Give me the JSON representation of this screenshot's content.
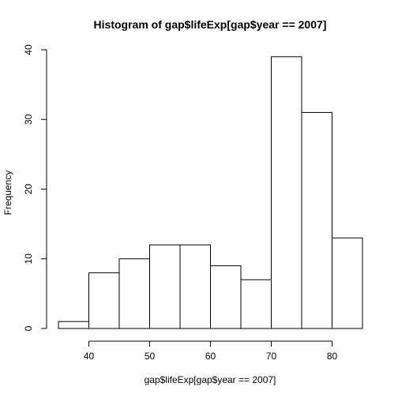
{
  "chart_data": {
    "type": "bar",
    "title": "Histogram of gap$lifeExp[gap$year == 2007]",
    "xlabel": "gap$lifeExp[gap$year == 2007]",
    "ylabel": "Frequency",
    "bins": [
      {
        "start": 35,
        "end": 40,
        "count": 1
      },
      {
        "start": 40,
        "end": 45,
        "count": 8
      },
      {
        "start": 45,
        "end": 50,
        "count": 10
      },
      {
        "start": 50,
        "end": 55,
        "count": 12
      },
      {
        "start": 55,
        "end": 60,
        "count": 12
      },
      {
        "start": 60,
        "end": 65,
        "count": 9
      },
      {
        "start": 65,
        "end": 70,
        "count": 7
      },
      {
        "start": 70,
        "end": 75,
        "count": 39
      },
      {
        "start": 75,
        "end": 80,
        "count": 31
      },
      {
        "start": 80,
        "end": 85,
        "count": 13
      }
    ],
    "xlim": [
      35,
      85
    ],
    "ylim": [
      0,
      40
    ],
    "xticks": [
      40,
      50,
      60,
      70,
      80
    ],
    "yticks": [
      0,
      10,
      20,
      30,
      40
    ],
    "grid": false,
    "bar_fill": "#ffffff",
    "bar_stroke": "#000000"
  }
}
